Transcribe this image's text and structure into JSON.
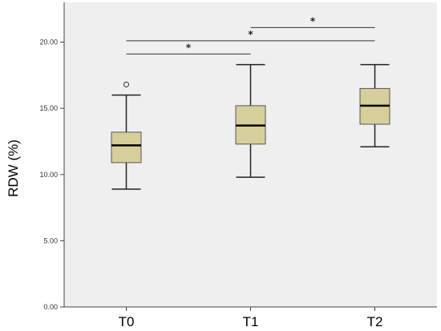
{
  "chart_data": {
    "type": "box",
    "categories": [
      "T0",
      "T1",
      "T2"
    ],
    "ylabel": "RDW (%)",
    "xlabel": "",
    "ylim": [
      0,
      23
    ],
    "yticks": [
      0,
      5,
      10,
      15,
      20
    ],
    "ytick_labels": [
      "0.00",
      "5.00",
      "10.00",
      "15.00",
      "20.00"
    ],
    "boxes": [
      {
        "category": "T0",
        "min": 8.9,
        "q1": 10.9,
        "median": 12.2,
        "q3": 13.2,
        "max": 16.0,
        "outliers": [
          16.8
        ]
      },
      {
        "category": "T1",
        "min": 9.8,
        "q1": 12.3,
        "median": 13.7,
        "q3": 15.2,
        "max": 18.3,
        "outliers": []
      },
      {
        "category": "T2",
        "min": 12.1,
        "q1": 13.8,
        "median": 15.2,
        "q3": 16.5,
        "max": 18.3,
        "outliers": []
      }
    ],
    "significance": [
      {
        "from": "T0",
        "to": "T1",
        "y": 19.1,
        "label": "*"
      },
      {
        "from": "T0",
        "to": "T2",
        "y": 20.1,
        "label": "*"
      },
      {
        "from": "T1",
        "to": "T2",
        "y": 21.1,
        "label": "*"
      }
    ],
    "grid": false,
    "colors": {
      "plot_background": "#efefef",
      "box_fill": "#d6cf9c",
      "box_stroke": "#555555",
      "axis": "#444444"
    }
  }
}
